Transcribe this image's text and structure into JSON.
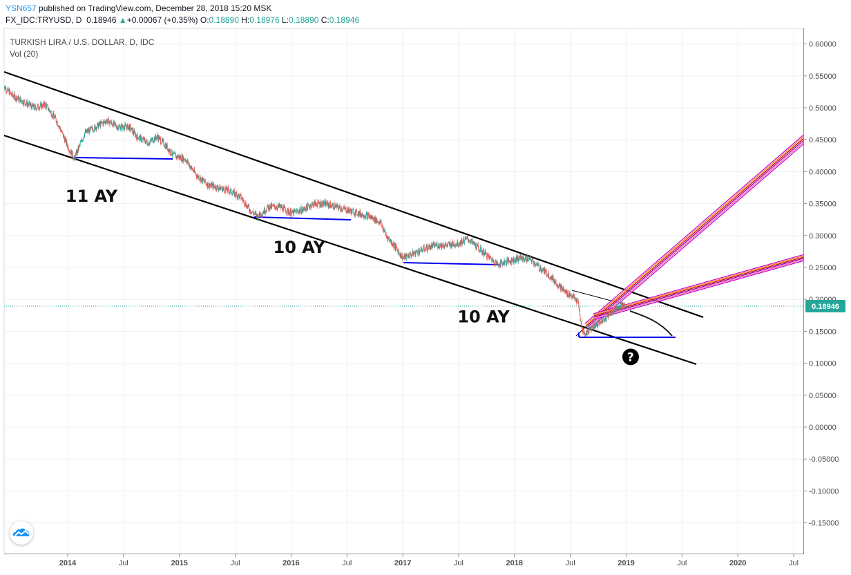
{
  "header": {
    "author": "YSN657",
    "published": "published on TradingView.com, December 28, 2018 15:20 MSK",
    "symbol": "FX_IDC:TRYUSD, D",
    "last": "0.18946",
    "change_arrow": "▲",
    "change": "+0.00067 (+0.35%)",
    "o_label": "O:",
    "o_val": "0.18890",
    "h_label": "H:",
    "h_val": "0.18976",
    "l_label": "L:",
    "l_val": "0.18890",
    "c_label": "C:",
    "c_val": "0.18946"
  },
  "logo_icon": "tradingview-cloud-icon",
  "chart_data": {
    "type": "line",
    "legend": [
      "TURKISH LIRA / U.S. DOLLAR, D, IDC",
      "Vol (20)"
    ],
    "last_price_label": "0.18946",
    "last_price": 0.18946,
    "colors": {
      "up": "#26a69a",
      "down": "#ef5350",
      "last_price": "#26a69a",
      "support": "#0000ff",
      "channel": "#000000",
      "fan": "#cc00cc"
    },
    "y_ticks": [
      "0.60000",
      "0.55000",
      "0.50000",
      "0.45000",
      "0.40000",
      "0.35000",
      "0.30000",
      "0.25000",
      "0.20000",
      "0.15000",
      "0.10000",
      "0.05000",
      "0.00000",
      "-0.05000",
      "-0.10000",
      "-0.15000"
    ],
    "y_tick_values": [
      0.6,
      0.55,
      0.5,
      0.45,
      0.4,
      0.35,
      0.3,
      0.25,
      0.2,
      0.15,
      0.1,
      0.05,
      0.0,
      -0.05,
      -0.1,
      -0.15
    ],
    "ylim": [
      -0.2,
      0.62
    ],
    "x_ticks": [
      {
        "label": "2014",
        "x": 2014.0,
        "bold": true
      },
      {
        "label": "Jul",
        "x": 2014.5,
        "bold": false
      },
      {
        "label": "2015",
        "x": 2015.0,
        "bold": true
      },
      {
        "label": "Jul",
        "x": 2015.5,
        "bold": false
      },
      {
        "label": "2016",
        "x": 2016.0,
        "bold": true
      },
      {
        "label": "Jul",
        "x": 2016.5,
        "bold": false
      },
      {
        "label": "2017",
        "x": 2017.0,
        "bold": true
      },
      {
        "label": "Jul",
        "x": 2017.5,
        "bold": false
      },
      {
        "label": "2018",
        "x": 2018.0,
        "bold": true
      },
      {
        "label": "Jul",
        "x": 2018.5,
        "bold": false
      },
      {
        "label": "2019",
        "x": 2019.0,
        "bold": true
      },
      {
        "label": "Jul",
        "x": 2019.5,
        "bold": false
      },
      {
        "label": "2020",
        "x": 2020.0,
        "bold": true
      },
      {
        "label": "Jul",
        "x": 2020.5,
        "bold": false
      }
    ],
    "xlim": [
      2013.41,
      2020.55
    ],
    "series": [
      {
        "points": [
          [
            2013.42,
            0.535
          ],
          [
            2013.5,
            0.52
          ],
          [
            2013.6,
            0.51
          ],
          [
            2013.7,
            0.5
          ],
          [
            2013.8,
            0.505
          ],
          [
            2013.9,
            0.48
          ],
          [
            2014.0,
            0.44
          ],
          [
            2014.06,
            0.42
          ],
          [
            2014.15,
            0.46
          ],
          [
            2014.25,
            0.47
          ],
          [
            2014.35,
            0.48
          ],
          [
            2014.45,
            0.47
          ],
          [
            2014.55,
            0.47
          ],
          [
            2014.62,
            0.455
          ],
          [
            2014.72,
            0.445
          ],
          [
            2014.8,
            0.455
          ],
          [
            2014.88,
            0.44
          ],
          [
            2014.95,
            0.425
          ],
          [
            2015.05,
            0.42
          ],
          [
            2015.15,
            0.395
          ],
          [
            2015.25,
            0.38
          ],
          [
            2015.35,
            0.375
          ],
          [
            2015.45,
            0.37
          ],
          [
            2015.55,
            0.36
          ],
          [
            2015.63,
            0.34
          ],
          [
            2015.7,
            0.33
          ],
          [
            2015.8,
            0.345
          ],
          [
            2015.9,
            0.345
          ],
          [
            2016.0,
            0.335
          ],
          [
            2016.1,
            0.34
          ],
          [
            2016.2,
            0.35
          ],
          [
            2016.3,
            0.35
          ],
          [
            2016.4,
            0.345
          ],
          [
            2016.5,
            0.34
          ],
          [
            2016.6,
            0.335
          ],
          [
            2016.7,
            0.33
          ],
          [
            2016.8,
            0.32
          ],
          [
            2016.85,
            0.3
          ],
          [
            2016.92,
            0.285
          ],
          [
            2017.0,
            0.265
          ],
          [
            2017.1,
            0.272
          ],
          [
            2017.2,
            0.28
          ],
          [
            2017.3,
            0.285
          ],
          [
            2017.4,
            0.285
          ],
          [
            2017.5,
            0.288
          ],
          [
            2017.58,
            0.295
          ],
          [
            2017.68,
            0.28
          ],
          [
            2017.78,
            0.265
          ],
          [
            2017.85,
            0.255
          ],
          [
            2017.95,
            0.26
          ],
          [
            2018.05,
            0.265
          ],
          [
            2018.15,
            0.262
          ],
          [
            2018.22,
            0.25
          ],
          [
            2018.3,
            0.24
          ],
          [
            2018.38,
            0.225
          ],
          [
            2018.45,
            0.212
          ],
          [
            2018.52,
            0.205
          ],
          [
            2018.57,
            0.195
          ],
          [
            2018.6,
            0.155
          ],
          [
            2018.63,
            0.145
          ],
          [
            2018.68,
            0.155
          ],
          [
            2018.75,
            0.162
          ],
          [
            2018.82,
            0.172
          ],
          [
            2018.9,
            0.185
          ],
          [
            2018.95,
            0.192
          ],
          [
            2018.99,
            0.18946
          ]
        ]
      }
    ],
    "annotations": {
      "labels": [
        {
          "text": "11 AY",
          "x": 2013.98,
          "y": 0.3625
        },
        {
          "text": "10 AY",
          "x": 2015.84,
          "y": 0.2825
        },
        {
          "text": "10 AY",
          "x": 2017.49,
          "y": 0.1735
        }
      ],
      "question_marker": {
        "glyph": "?",
        "x": 2019.04,
        "y": 0.11
      }
    }
  }
}
